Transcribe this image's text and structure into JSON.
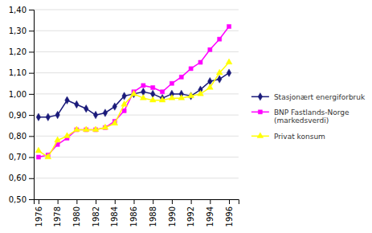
{
  "chart_data": {
    "type": "line",
    "x": [
      1976,
      1977,
      1978,
      1979,
      1980,
      1981,
      1982,
      1983,
      1984,
      1985,
      1986,
      1987,
      1988,
      1989,
      1990,
      1991,
      1992,
      1993,
      1994,
      1995,
      1996
    ],
    "series": [
      {
        "name": "Stasjonært energiforbruk",
        "color": "#1a1a7a",
        "marker": "diamond",
        "values": [
          0.89,
          0.89,
          0.9,
          0.97,
          0.95,
          0.93,
          0.9,
          0.91,
          0.94,
          0.99,
          1.0,
          1.01,
          1.0,
          0.98,
          1.0,
          1.0,
          0.99,
          1.02,
          1.06,
          1.07,
          1.1
        ]
      },
      {
        "name": "BNP Fastlands-Norge\n(markedsverdi)",
        "color": "#ff00ff",
        "marker": "square",
        "values": [
          0.7,
          0.71,
          0.76,
          0.79,
          0.83,
          0.83,
          0.83,
          0.84,
          0.87,
          0.92,
          1.01,
          1.04,
          1.03,
          1.01,
          1.05,
          1.08,
          1.12,
          1.15,
          1.21,
          1.26,
          1.32
        ]
      },
      {
        "name": "Privat konsum",
        "color": "#ffff00",
        "marker": "triangle",
        "values": [
          0.73,
          0.7,
          0.78,
          0.8,
          0.83,
          0.83,
          0.83,
          0.84,
          0.86,
          0.95,
          1.0,
          0.98,
          0.97,
          0.97,
          0.98,
          0.98,
          0.99,
          1.0,
          1.03,
          1.1,
          1.15
        ]
      }
    ],
    "xlim": [
      1975.5,
      1997.0
    ],
    "xticks": [
      1976,
      1978,
      1980,
      1982,
      1984,
      1986,
      1988,
      1990,
      1992,
      1994,
      1996
    ],
    "ylim": [
      0.5,
      1.4
    ],
    "yticks": [
      {
        "value": 0.5,
        "label": "0,50"
      },
      {
        "value": 0.6,
        "label": "0,60"
      },
      {
        "value": 0.7,
        "label": "0,70"
      },
      {
        "value": 0.8,
        "label": "0,80"
      },
      {
        "value": 0.9,
        "label": "0,90"
      },
      {
        "value": 1.0,
        "label": "1,00"
      },
      {
        "value": 1.1,
        "label": "1,10"
      },
      {
        "value": 1.2,
        "label": "1,20"
      },
      {
        "value": 1.3,
        "label": "1,30"
      },
      {
        "value": 1.4,
        "label": "1,40"
      }
    ],
    "grid": true,
    "legend": "right"
  }
}
